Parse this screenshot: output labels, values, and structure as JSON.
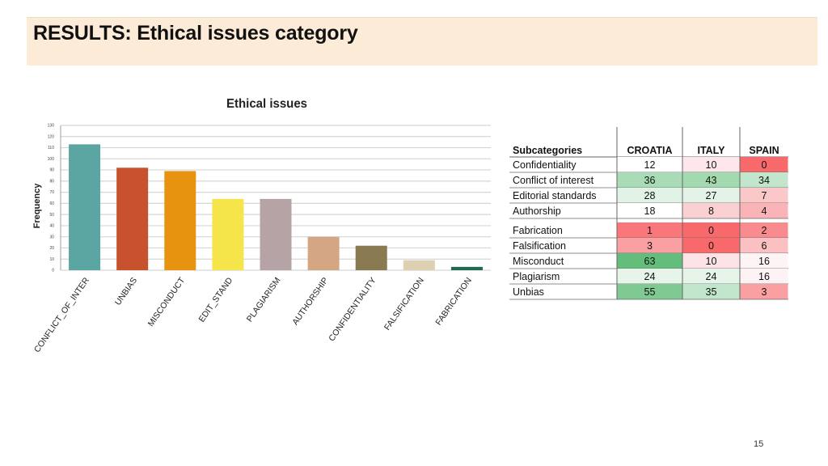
{
  "header": {
    "title": "RESULTS: Ethical issues category"
  },
  "chart_data": {
    "type": "bar",
    "title": "Ethical issues",
    "xlabel": "",
    "ylabel": "Frequency",
    "ylim": [
      0,
      130
    ],
    "yticks": [
      0,
      10,
      20,
      30,
      40,
      50,
      60,
      70,
      80,
      90,
      100,
      110,
      120,
      130
    ],
    "grid": true,
    "categories": [
      "CONFLICT_OF_INTER",
      "UNBIAS",
      "MISCONDUCT",
      "EDIT_STAND",
      "PLAGIARISM",
      "AUTHORSHIP",
      "CONFIDENTIALITY",
      "FALSIFICATION",
      "FABRICATION"
    ],
    "values": [
      113,
      92,
      89,
      64,
      64,
      30,
      22,
      9,
      3
    ],
    "colors": [
      "#5ba5a2",
      "#c9522e",
      "#e8930f",
      "#f5e54a",
      "#b6a3a6",
      "#d4a684",
      "#8a7a52",
      "#ded0b3",
      "#1e6b4e"
    ]
  },
  "table": {
    "headers": [
      "Subcategories",
      "CROATIA",
      "ITALY",
      "SPAIN"
    ],
    "rows": [
      {
        "label": "Confidentiality",
        "values": [
          "12",
          "10",
          "0"
        ],
        "colors": [
          "#ffffff",
          "#fde7ea",
          "#f8696b"
        ]
      },
      {
        "label": "Conflict of interest",
        "values": [
          "36",
          "43",
          "34"
        ],
        "colors": [
          "#a9dcb6",
          "#a2d9af",
          "#c1e6cb"
        ]
      },
      {
        "label": "Editorial standards",
        "values": [
          "28",
          "27",
          "7"
        ],
        "colors": [
          "#e1f2e6",
          "#e3f3e8",
          "#fbc8ca"
        ]
      },
      {
        "label": "Authorship",
        "values": [
          "18",
          "8",
          "4"
        ],
        "colors": [
          "#ffffff",
          "#fbd0d2",
          "#fab4b7"
        ]
      },
      {
        "label": "Fabrication",
        "values": [
          "1",
          "0",
          "2"
        ],
        "colors": [
          "#f9777a",
          "#f8696b",
          "#f98a8d"
        ]
      },
      {
        "label": "Falsification",
        "values": [
          "3",
          "0",
          "6"
        ],
        "colors": [
          "#fa9fa2",
          "#f8696b",
          "#fbc0c2"
        ]
      },
      {
        "label": "Misconduct",
        "values": [
          "63",
          "10",
          "16"
        ],
        "colors": [
          "#63be7b",
          "#fde3e6",
          "#fdf4f5"
        ]
      },
      {
        "label": "Plagiarism",
        "values": [
          "24",
          "24",
          "16"
        ],
        "colors": [
          "#e6f4ea",
          "#e6f4ea",
          "#fdf3f4"
        ]
      },
      {
        "label": "Unbias",
        "values": [
          "55",
          "35",
          "3"
        ],
        "colors": [
          "#7fc992",
          "#c1e6cb",
          "#fa9fa2"
        ]
      }
    ]
  },
  "footer": {
    "page_number": "15"
  }
}
